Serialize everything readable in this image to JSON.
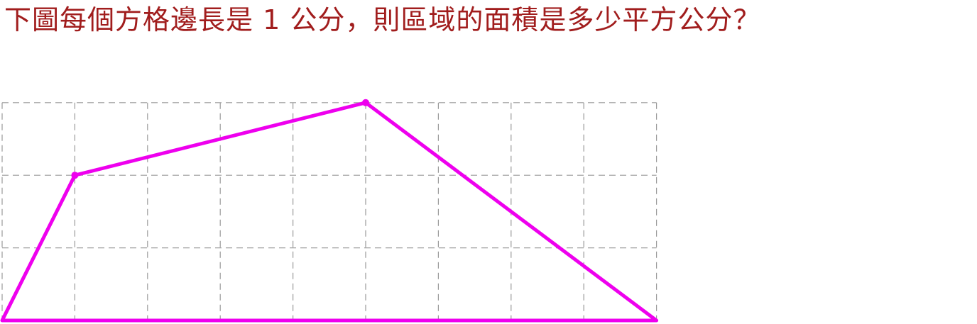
{
  "question": {
    "text": "下圖每個方格邊長是 1 公分，則區域的面積是多少平方公分？"
  },
  "grid": {
    "columns": 9,
    "rows": 3,
    "cell_length_cm": 1
  },
  "polygon": {
    "vertices": [
      [
        0,
        0
      ],
      [
        1,
        2
      ],
      [
        5,
        3
      ],
      [
        9,
        0
      ]
    ],
    "marked_points": [
      [
        1,
        2
      ],
      [
        5,
        3
      ]
    ]
  },
  "colors": {
    "question_text": "#a11d1d",
    "polygon_stroke": "#ee00ee",
    "grid_line": "#9a9a9a"
  }
}
